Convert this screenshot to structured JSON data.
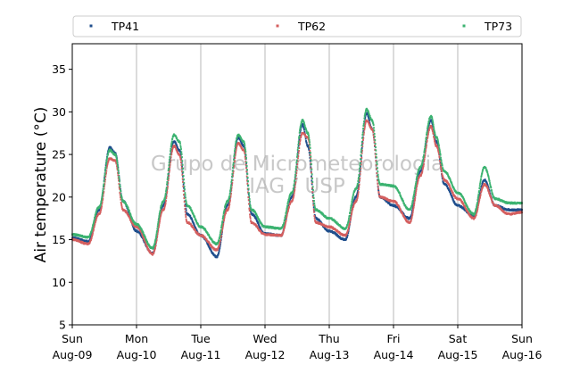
{
  "chart_data": {
    "type": "scatter",
    "title": "",
    "xlabel": "",
    "ylabel": "Air temperature (°C)",
    "ylim": [
      5,
      38
    ],
    "yticks": [
      5,
      10,
      15,
      20,
      25,
      30,
      35
    ],
    "xlim": [
      "2020-08-09 00:00",
      "2020-08-16 00:00"
    ],
    "xticks": [
      {
        "day": "Sun",
        "date": "Aug-09"
      },
      {
        "day": "Mon",
        "date": "Aug-10"
      },
      {
        "day": "Tue",
        "date": "Aug-11"
      },
      {
        "day": "Wed",
        "date": "Aug-12"
      },
      {
        "day": "Thu",
        "date": "Aug-13"
      },
      {
        "day": "Fri",
        "date": "Aug-14"
      },
      {
        "day": "Sat",
        "date": "Aug-15"
      },
      {
        "day": "Sun",
        "date": "Aug-16"
      }
    ],
    "grid": "vertical",
    "legend_position": "top",
    "watermark": [
      "Grupo de Micrometeorologia",
      "IAG / USP"
    ],
    "series": [
      {
        "name": "TP41",
        "color": "#1f4e8c",
        "points": [
          [
            "2020-08-09 00:00",
            15.2
          ],
          [
            "2020-08-09 06:00",
            14.8
          ],
          [
            "2020-08-09 10:00",
            18.5
          ],
          [
            "2020-08-09 14:00",
            25.8
          ],
          [
            "2020-08-09 16:00",
            25.2
          ],
          [
            "2020-08-09 19:00",
            19.5
          ],
          [
            "2020-08-10 00:00",
            16.0
          ],
          [
            "2020-08-10 06:00",
            13.4
          ],
          [
            "2020-08-10 10:00",
            19.0
          ],
          [
            "2020-08-10 14:00",
            26.5
          ],
          [
            "2020-08-10 16:00",
            25.5
          ],
          [
            "2020-08-10 19:00",
            18.0
          ],
          [
            "2020-08-11 00:00",
            15.5
          ],
          [
            "2020-08-11 06:00",
            13.0
          ],
          [
            "2020-08-11 10:00",
            19.0
          ],
          [
            "2020-08-11 14:00",
            27.0
          ],
          [
            "2020-08-11 16:00",
            26.0
          ],
          [
            "2020-08-11 19:00",
            18.0
          ],
          [
            "2020-08-12 00:00",
            15.7
          ],
          [
            "2020-08-12 06:00",
            15.5
          ],
          [
            "2020-08-12 10:00",
            20.0
          ],
          [
            "2020-08-12 14:00",
            28.5
          ],
          [
            "2020-08-12 16:00",
            26.0
          ],
          [
            "2020-08-12 19:00",
            17.5
          ],
          [
            "2020-08-13 00:00",
            16.0
          ],
          [
            "2020-08-13 06:00",
            15.0
          ],
          [
            "2020-08-13 10:00",
            20.0
          ],
          [
            "2020-08-13 14:00",
            29.8
          ],
          [
            "2020-08-13 16:00",
            28.0
          ],
          [
            "2020-08-13 19:00",
            20.0
          ],
          [
            "2020-08-14 00:00",
            19.0
          ],
          [
            "2020-08-14 06:00",
            17.5
          ],
          [
            "2020-08-14 10:00",
            23.0
          ],
          [
            "2020-08-14 14:00",
            29.0
          ],
          [
            "2020-08-14 16:00",
            26.5
          ],
          [
            "2020-08-14 19:00",
            21.5
          ],
          [
            "2020-08-15 00:00",
            19.0
          ],
          [
            "2020-08-15 06:00",
            17.8
          ],
          [
            "2020-08-15 10:00",
            22.0
          ],
          [
            "2020-08-15 14:00",
            19.0
          ],
          [
            "2020-08-15 19:00",
            18.5
          ],
          [
            "2020-08-16 00:00",
            18.5
          ]
        ]
      },
      {
        "name": "TP62",
        "color": "#d45f5f",
        "points": [
          [
            "2020-08-09 00:00",
            15.0
          ],
          [
            "2020-08-09 06:00",
            14.5
          ],
          [
            "2020-08-09 10:00",
            18.0
          ],
          [
            "2020-08-09 14:00",
            24.5
          ],
          [
            "2020-08-09 16:00",
            24.3
          ],
          [
            "2020-08-09 19:00",
            18.5
          ],
          [
            "2020-08-10 00:00",
            16.5
          ],
          [
            "2020-08-10 06:00",
            13.3
          ],
          [
            "2020-08-10 10:00",
            18.5
          ],
          [
            "2020-08-10 14:00",
            26.0
          ],
          [
            "2020-08-10 16:00",
            25.0
          ],
          [
            "2020-08-10 19:00",
            17.0
          ],
          [
            "2020-08-11 00:00",
            15.5
          ],
          [
            "2020-08-11 06:00",
            13.8
          ],
          [
            "2020-08-11 10:00",
            18.5
          ],
          [
            "2020-08-11 14:00",
            26.3
          ],
          [
            "2020-08-11 16:00",
            25.5
          ],
          [
            "2020-08-11 19:00",
            17.0
          ],
          [
            "2020-08-12 00:00",
            15.6
          ],
          [
            "2020-08-12 06:00",
            15.5
          ],
          [
            "2020-08-12 10:00",
            19.5
          ],
          [
            "2020-08-12 14:00",
            27.5
          ],
          [
            "2020-08-12 16:00",
            27.0
          ],
          [
            "2020-08-12 19:00",
            17.0
          ],
          [
            "2020-08-13 00:00",
            16.5
          ],
          [
            "2020-08-13 06:00",
            15.5
          ],
          [
            "2020-08-13 10:00",
            19.5
          ],
          [
            "2020-08-13 14:00",
            29.0
          ],
          [
            "2020-08-13 16:00",
            28.0
          ],
          [
            "2020-08-13 19:00",
            20.0
          ],
          [
            "2020-08-14 00:00",
            19.5
          ],
          [
            "2020-08-14 06:00",
            17.0
          ],
          [
            "2020-08-14 10:00",
            22.5
          ],
          [
            "2020-08-14 14:00",
            28.3
          ],
          [
            "2020-08-14 16:00",
            26.0
          ],
          [
            "2020-08-14 19:00",
            22.0
          ],
          [
            "2020-08-15 00:00",
            19.8
          ],
          [
            "2020-08-15 06:00",
            17.5
          ],
          [
            "2020-08-15 10:00",
            21.5
          ],
          [
            "2020-08-15 14:00",
            19.0
          ],
          [
            "2020-08-15 19:00",
            18.0
          ],
          [
            "2020-08-16 00:00",
            18.2
          ]
        ]
      },
      {
        "name": "TP73",
        "color": "#3cb371",
        "points": [
          [
            "2020-08-09 00:00",
            15.6
          ],
          [
            "2020-08-09 06:00",
            15.3
          ],
          [
            "2020-08-09 10:00",
            18.8
          ],
          [
            "2020-08-09 14:00",
            25.5
          ],
          [
            "2020-08-09 16:00",
            25.0
          ],
          [
            "2020-08-09 19:00",
            19.5
          ],
          [
            "2020-08-10 00:00",
            16.8
          ],
          [
            "2020-08-10 06:00",
            14.0
          ],
          [
            "2020-08-10 10:00",
            19.5
          ],
          [
            "2020-08-10 14:00",
            27.3
          ],
          [
            "2020-08-10 16:00",
            26.5
          ],
          [
            "2020-08-10 19:00",
            19.0
          ],
          [
            "2020-08-11 00:00",
            16.5
          ],
          [
            "2020-08-11 06:00",
            14.5
          ],
          [
            "2020-08-11 10:00",
            19.5
          ],
          [
            "2020-08-11 14:00",
            27.3
          ],
          [
            "2020-08-11 16:00",
            26.5
          ],
          [
            "2020-08-11 19:00",
            18.5
          ],
          [
            "2020-08-12 00:00",
            16.5
          ],
          [
            "2020-08-12 06:00",
            16.3
          ],
          [
            "2020-08-12 10:00",
            20.5
          ],
          [
            "2020-08-12 14:00",
            29.0
          ],
          [
            "2020-08-12 16:00",
            27.5
          ],
          [
            "2020-08-12 19:00",
            18.5
          ],
          [
            "2020-08-13 00:00",
            17.5
          ],
          [
            "2020-08-13 06:00",
            16.3
          ],
          [
            "2020-08-13 10:00",
            21.0
          ],
          [
            "2020-08-13 14:00",
            30.3
          ],
          [
            "2020-08-13 16:00",
            29.0
          ],
          [
            "2020-08-13 19:00",
            21.5
          ],
          [
            "2020-08-14 00:00",
            21.3
          ],
          [
            "2020-08-14 06:00",
            18.5
          ],
          [
            "2020-08-14 10:00",
            23.5
          ],
          [
            "2020-08-14 14:00",
            29.5
          ],
          [
            "2020-08-14 16:00",
            27.0
          ],
          [
            "2020-08-14 19:00",
            23.0
          ],
          [
            "2020-08-15 00:00",
            20.5
          ],
          [
            "2020-08-15 06:00",
            18.0
          ],
          [
            "2020-08-15 10:00",
            23.5
          ],
          [
            "2020-08-15 14:00",
            19.8
          ],
          [
            "2020-08-15 19:00",
            19.3
          ],
          [
            "2020-08-16 00:00",
            19.3
          ]
        ]
      }
    ]
  }
}
